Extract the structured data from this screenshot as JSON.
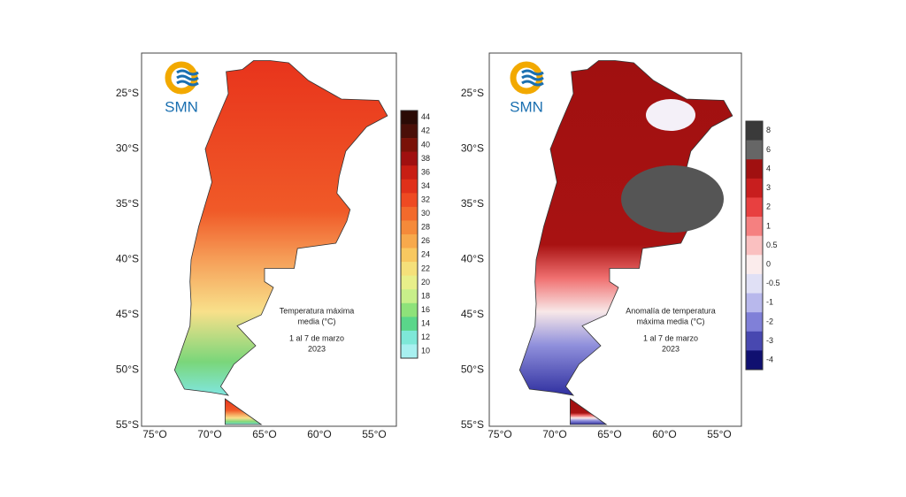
{
  "maps": [
    {
      "logo": "SMN",
      "lat_labels": [
        "25°S",
        "30°S",
        "35°S",
        "40°S",
        "45°S",
        "50°S",
        "55°S"
      ],
      "lon_labels": [
        "75°O",
        "70°O",
        "65°O",
        "60°O",
        "55°O"
      ],
      "colorbar": {
        "labels": [
          "44",
          "42",
          "40",
          "38",
          "36",
          "34",
          "32",
          "30",
          "28",
          "26",
          "24",
          "22",
          "20",
          "18",
          "16",
          "14",
          "12",
          "10"
        ],
        "colors": [
          "#2a0a05",
          "#4a0f08",
          "#7a1208",
          "#a01010",
          "#c81e14",
          "#e0301a",
          "#ee4a22",
          "#f26a2c",
          "#f58a3a",
          "#f7a94c",
          "#f8c860",
          "#f5e07a",
          "#e8ef8a",
          "#c8ef8a",
          "#8ee27a",
          "#5ad68a",
          "#7ee8d8",
          "#a8f0f0"
        ]
      },
      "caption": [
        "Temperatura máxima",
        "media (°C)",
        "1 al 7 de marzo",
        "2023"
      ]
    },
    {
      "logo": "SMN",
      "lat_labels": [
        "25°S",
        "30°S",
        "35°S",
        "40°S",
        "45°S",
        "50°S",
        "55°S"
      ],
      "lon_labels": [
        "75°O",
        "70°O",
        "65°O",
        "60°O",
        "55°O"
      ],
      "colorbar": {
        "labels": [
          "8",
          "6",
          "4",
          "3",
          "2",
          "1",
          "0.5",
          "0",
          "-0.5",
          "-1",
          "-2",
          "-3",
          "-4"
        ],
        "colors": [
          "#3a3a3a",
          "#666666",
          "#a01010",
          "#c81e1e",
          "#e84040",
          "#f58080",
          "#fac0c0",
          "#fbecec",
          "#e0e0f5",
          "#b8b8ec",
          "#8080d8",
          "#4848b0",
          "#101070"
        ]
      },
      "caption": [
        "Anomalía de temperatura",
        "máxima media (°C)",
        "1 al 7 de marzo",
        "2023"
      ]
    }
  ]
}
